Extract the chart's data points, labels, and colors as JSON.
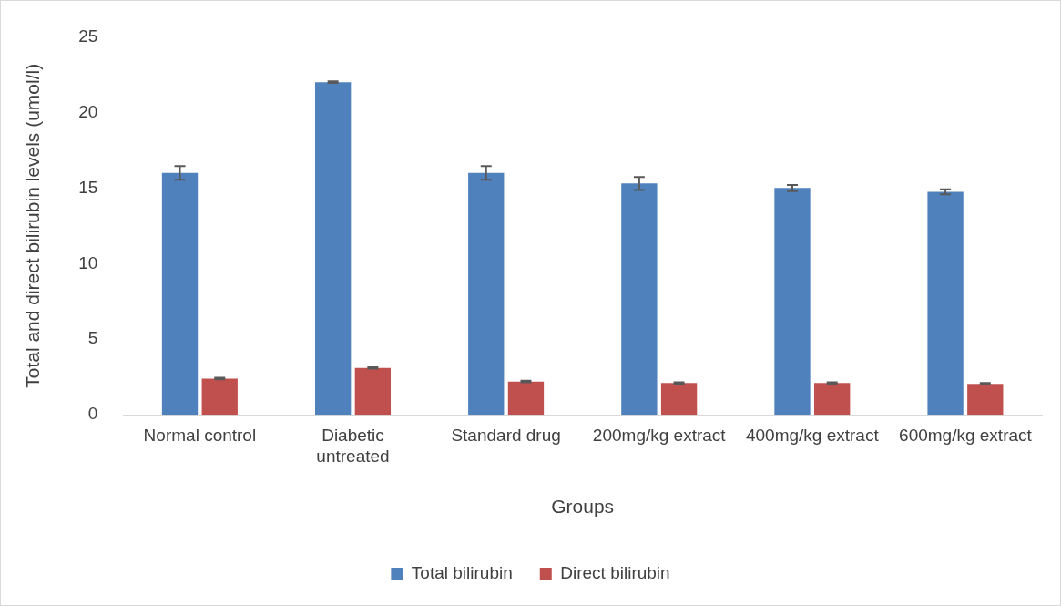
{
  "chart_data": {
    "type": "bar",
    "xlabel": "Groups",
    "ylabel": "Total and direct bilirubin levels (umol/l)",
    "categories": [
      "Normal control",
      "Diabetic untreated",
      "Standard drug",
      "200mg/kg extract",
      "400mg/kg extract",
      "600mg/kg extract"
    ],
    "series": [
      {
        "name": "Total bilirubin",
        "color": "#4f81bd",
        "values": [
          16.0,
          22.0,
          16.0,
          15.3,
          15.0,
          14.75
        ],
        "errors": [
          0.45,
          0.05,
          0.45,
          0.43,
          0.2,
          0.17
        ]
      },
      {
        "name": "Direct bilirubin",
        "color": "#c0504d",
        "values": [
          2.4,
          3.1,
          2.2,
          2.1,
          2.1,
          2.05
        ],
        "errors": [
          0.05,
          0.05,
          0.05,
          0.05,
          0.05,
          0.05
        ]
      }
    ],
    "ylim": [
      0,
      25
    ],
    "yticks": [
      0,
      5,
      10,
      15,
      20,
      25
    ],
    "grid": false,
    "legend": "bottom"
  }
}
